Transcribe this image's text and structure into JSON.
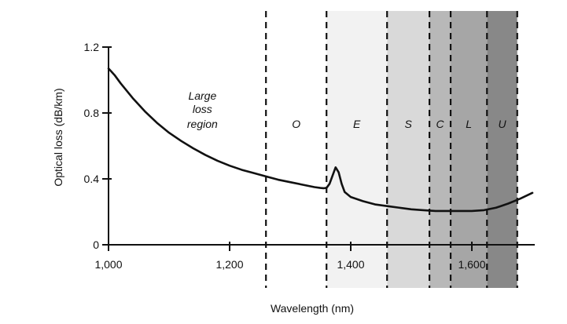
{
  "chart_data": {
    "type": "line",
    "title": "",
    "xlabel": "Wavelength (nm)",
    "ylabel": "Optical loss (dB/km)",
    "xlim": [
      1000,
      1700
    ],
    "ylim": [
      0,
      1.2
    ],
    "grid": false,
    "legend": "none",
    "x_ticks": [
      {
        "value": 1000,
        "label": "1,000"
      },
      {
        "value": 1200,
        "label": "1,200"
      },
      {
        "value": 1400,
        "label": "1,400"
      },
      {
        "value": 1600,
        "label": "1,600"
      }
    ],
    "y_ticks": [
      {
        "value": 0,
        "label": "0"
      },
      {
        "value": 0.4,
        "label": "0.4"
      },
      {
        "value": 0.8,
        "label": "0.8"
      },
      {
        "value": 1.2,
        "label": "1.2"
      }
    ],
    "annotations": [
      {
        "text": "Large",
        "x": 1155,
        "y": 0.88
      },
      {
        "text": "loss",
        "x": 1155,
        "y": 0.8
      },
      {
        "text": "region",
        "x": 1155,
        "y": 0.71
      }
    ],
    "bands": [
      {
        "label": "O",
        "start": 1260,
        "end": 1360,
        "color": "#ffffff"
      },
      {
        "label": "E",
        "start": 1360,
        "end": 1460,
        "color": "#f2f2f2"
      },
      {
        "label": "S",
        "start": 1460,
        "end": 1530,
        "color": "#d9d9d9"
      },
      {
        "label": "C",
        "start": 1530,
        "end": 1565,
        "color": "#b8b8b8"
      },
      {
        "label": "L",
        "start": 1565,
        "end": 1625,
        "color": "#a6a6a6"
      },
      {
        "label": "U",
        "start": 1625,
        "end": 1675,
        "color": "#888888"
      }
    ],
    "boundaries": [
      1260,
      1360,
      1460,
      1530,
      1565,
      1625,
      1675
    ],
    "series": [
      {
        "color": "#111111",
        "x": [
          1000,
          1010,
          1020,
          1040,
          1060,
          1080,
          1100,
          1120,
          1140,
          1160,
          1180,
          1200,
          1220,
          1240,
          1260,
          1280,
          1300,
          1320,
          1340,
          1350,
          1355,
          1360,
          1365,
          1370,
          1375,
          1380,
          1385,
          1390,
          1400,
          1420,
          1440,
          1460,
          1480,
          1500,
          1520,
          1540,
          1560,
          1580,
          1600,
          1620,
          1640,
          1660,
          1680,
          1700
        ],
        "y": [
          1.07,
          1.03,
          0.98,
          0.89,
          0.81,
          0.74,
          0.68,
          0.63,
          0.585,
          0.545,
          0.51,
          0.48,
          0.455,
          0.435,
          0.415,
          0.395,
          0.38,
          0.365,
          0.35,
          0.345,
          0.343,
          0.345,
          0.37,
          0.42,
          0.47,
          0.44,
          0.37,
          0.32,
          0.29,
          0.265,
          0.245,
          0.235,
          0.225,
          0.215,
          0.21,
          0.205,
          0.205,
          0.205,
          0.205,
          0.21,
          0.225,
          0.25,
          0.28,
          0.315
        ]
      }
    ]
  }
}
